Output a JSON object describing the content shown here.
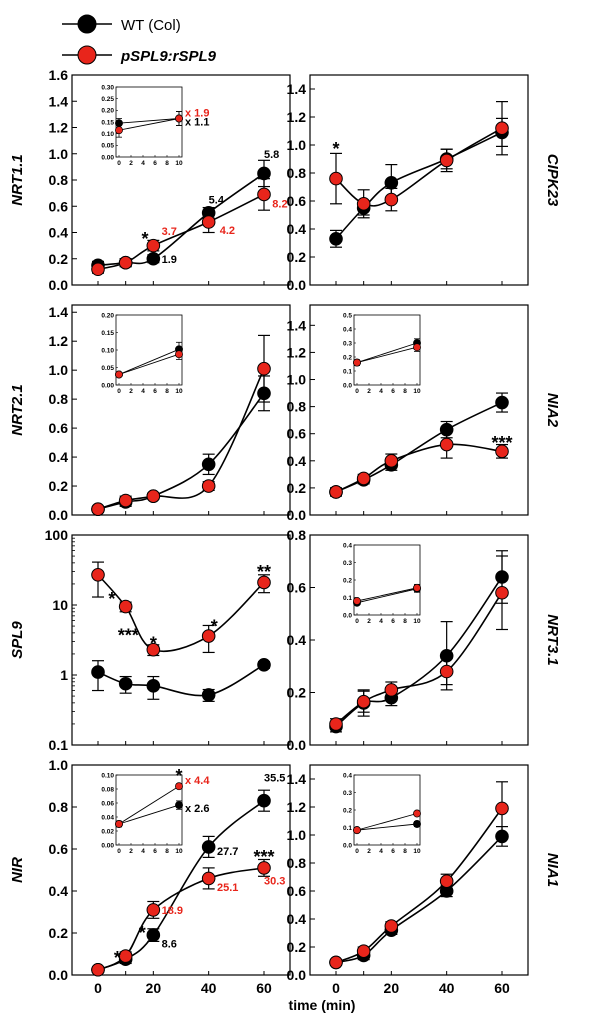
{
  "legend": [
    {
      "label": "WT (Col)",
      "color": "#000000",
      "italic": false
    },
    {
      "label": "pSPL9:rSPL9",
      "color": "#e8251b",
      "italic": true
    }
  ],
  "xlabel": "time (min)",
  "xticks": [
    "0",
    "20",
    "40",
    "60"
  ],
  "colors": {
    "wt": "#000000",
    "mut": "#e8251b"
  },
  "chart_data": [
    {
      "id": "nrt11",
      "type": "line",
      "ylabel": "NRT1.1",
      "ylabel_side": "left",
      "x": [
        0,
        10,
        20,
        40,
        60
      ],
      "ylim": [
        0,
        1.6
      ],
      "yticks": [
        "0.0",
        "0.2",
        "0.4",
        "0.6",
        "0.8",
        "1.0",
        "1.2",
        "1.4",
        "1.6"
      ],
      "series": [
        {
          "name": "WT (Col)",
          "values": [
            0.15,
            0.17,
            0.2,
            0.55,
            0.85
          ],
          "err": [
            0.03,
            0.03,
            0.03,
            0.04,
            0.1
          ]
        },
        {
          "name": "pSPL9:rSPL9",
          "values": [
            0.12,
            0.17,
            0.3,
            0.48,
            0.69
          ],
          "err": [
            0.03,
            0.03,
            0.04,
            0.08,
            0.12
          ]
        }
      ],
      "annotations": [
        {
          "text": "*",
          "x": 17,
          "y": 0.38,
          "kind": "sig"
        },
        {
          "text": "1.9",
          "x": 23,
          "y": 0.2,
          "color": "#000000"
        },
        {
          "text": "3.7",
          "x": 23,
          "y": 0.41,
          "color": "#e8251b"
        },
        {
          "text": "5.4",
          "x": 40,
          "y": 0.65,
          "color": "#000000"
        },
        {
          "text": "4.2",
          "x": 44,
          "y": 0.42,
          "color": "#e8251b"
        },
        {
          "text": "5.8",
          "x": 60,
          "y": 1.0,
          "color": "#000000"
        },
        {
          "text": "8.2",
          "x": 63,
          "y": 0.62,
          "color": "#e8251b"
        }
      ],
      "inset": {
        "ylim": [
          0,
          0.3
        ],
        "yticks": [
          "0.00",
          "0.05",
          "0.10",
          "0.15",
          "0.20",
          "0.25",
          "0.30"
        ],
        "xticks": [
          "0",
          "2",
          "4",
          "6",
          "8",
          "10"
        ],
        "series": [
          {
            "name": "WT (Col)",
            "values": [
              0.145,
              0.165
            ],
            "err": [
              0.02,
              0.03
            ]
          },
          {
            "name": "pSPL9:rSPL9",
            "values": [
              0.115,
              0.165
            ],
            "err": [
              0.03,
              0.03
            ]
          }
        ],
        "annotations": [
          {
            "text": "x 1.9",
            "color": "#e8251b",
            "pos": "upper"
          },
          {
            "text": "x 1.1",
            "color": "#000000",
            "pos": "lower"
          }
        ]
      }
    },
    {
      "id": "cipk23",
      "type": "line",
      "ylabel": "CIPK23",
      "ylabel_side": "right",
      "x": [
        0,
        10,
        20,
        40,
        60
      ],
      "ylim": [
        0,
        1.5
      ],
      "yticks": [
        "0.0",
        "0.2",
        "0.4",
        "0.6",
        "0.8",
        "1.0",
        "1.2",
        "1.4"
      ],
      "series": [
        {
          "name": "WT (Col)",
          "values": [
            0.33,
            0.55,
            0.73,
            0.9,
            1.09
          ],
          "err": [
            0.06,
            0.05,
            0.13,
            0.07,
            0.1
          ]
        },
        {
          "name": "pSPL9:rSPL9",
          "values": [
            0.76,
            0.58,
            0.61,
            0.89,
            1.12
          ],
          "err": [
            0.18,
            0.1,
            0.08,
            0.08,
            0.19
          ]
        }
      ],
      "annotations": [
        {
          "text": "*",
          "x": 0,
          "y": 1.0,
          "kind": "sig"
        }
      ]
    },
    {
      "id": "nrt21",
      "type": "line",
      "ylabel": "NRT2.1",
      "ylabel_side": "left",
      "x": [
        0,
        10,
        20,
        40,
        60
      ],
      "ylim": [
        0,
        1.45
      ],
      "yticks": [
        "0.0",
        "0.2",
        "0.4",
        "0.6",
        "0.8",
        "1.0",
        "1.2",
        "1.4"
      ],
      "series": [
        {
          "name": "WT (Col)",
          "values": [
            0.04,
            0.09,
            0.13,
            0.35,
            0.84
          ],
          "err": [
            0.02,
            0.03,
            0.02,
            0.07,
            0.12
          ]
        },
        {
          "name": "pSPL9:rSPL9",
          "values": [
            0.04,
            0.1,
            0.13,
            0.2,
            1.01
          ],
          "err": [
            0.02,
            0.03,
            0.02,
            0.03,
            0.23
          ]
        }
      ],
      "annotations": [],
      "inset": {
        "ylim": [
          0,
          0.2
        ],
        "yticks": [
          "0.00",
          "0.05",
          "0.10",
          "0.15",
          "0.20"
        ],
        "xticks": [
          "0",
          "2",
          "4",
          "6",
          "8",
          "10"
        ],
        "series": [
          {
            "name": "WT (Col)",
            "values": [
              0.03,
              0.102
            ],
            "err": [
              0.005,
              0.02
            ]
          },
          {
            "name": "pSPL9:rSPL9",
            "values": [
              0.03,
              0.088
            ],
            "err": [
              0.005,
              0.015
            ]
          }
        ],
        "annotations": []
      }
    },
    {
      "id": "nia2",
      "type": "line",
      "ylabel": "NIA2",
      "ylabel_side": "right",
      "x": [
        0,
        10,
        20,
        40,
        60
      ],
      "ylim": [
        0,
        1.55
      ],
      "yticks": [
        "0.0",
        "0.2",
        "0.4",
        "0.6",
        "0.8",
        "1.0",
        "1.2",
        "1.4"
      ],
      "series": [
        {
          "name": "WT (Col)",
          "values": [
            0.17,
            0.26,
            0.37,
            0.63,
            0.83
          ],
          "err": [
            0.03,
            0.03,
            0.04,
            0.06,
            0.07
          ]
        },
        {
          "name": "pSPL9:rSPL9",
          "values": [
            0.17,
            0.27,
            0.4,
            0.52,
            0.47
          ],
          "err": [
            0.03,
            0.03,
            0.05,
            0.1,
            0.05
          ]
        }
      ],
      "annotations": [
        {
          "text": "***",
          "x": 60,
          "y": 0.56,
          "kind": "sig"
        }
      ],
      "inset": {
        "ylim": [
          0,
          0.5
        ],
        "yticks": [
          "0.0",
          "0.1",
          "0.2",
          "0.3",
          "0.4",
          "0.5"
        ],
        "xticks": [
          "0",
          "2",
          "4",
          "6",
          "8",
          "10"
        ],
        "series": [
          {
            "name": "WT (Col)",
            "values": [
              0.16,
              0.3
            ],
            "err": [
              0.02,
              0.03
            ]
          },
          {
            "name": "pSPL9:rSPL9",
            "values": [
              0.16,
              0.27
            ],
            "err": [
              0.02,
              0.03
            ]
          }
        ],
        "annotations": []
      }
    },
    {
      "id": "spl9",
      "type": "line",
      "ylabel": "SPL9",
      "ylabel_side": "left",
      "log": true,
      "x": [
        0,
        10,
        20,
        40,
        60
      ],
      "ylim": [
        0.1,
        100
      ],
      "yticks": [
        "0.1",
        "1",
        "10",
        "100"
      ],
      "series": [
        {
          "name": "WT (Col)",
          "values": [
            1.1,
            0.75,
            0.7,
            0.52,
            1.4
          ],
          "err": [
            0.5,
            0.2,
            0.25,
            0.1,
            0.15
          ]
        },
        {
          "name": "pSPL9:rSPL9",
          "values": [
            27,
            9.5,
            2.3,
            3.6,
            21
          ],
          "err": [
            14,
            1.5,
            0.4,
            1.5,
            6
          ]
        }
      ],
      "annotations": [
        {
          "text": "*",
          "x": 5,
          "y": 14,
          "kind": "sig"
        },
        {
          "text": "***",
          "x": 11,
          "y": 4.2,
          "kind": "sig"
        },
        {
          "text": "*",
          "x": 20,
          "y": 3.2,
          "kind": "sig"
        },
        {
          "text": "*",
          "x": 42,
          "y": 5.6,
          "kind": "sig"
        },
        {
          "text": "**",
          "x": 60,
          "y": 34,
          "kind": "sig"
        }
      ]
    },
    {
      "id": "nrt31",
      "type": "line",
      "ylabel": "NRT3.1",
      "ylabel_side": "right",
      "x": [
        0,
        10,
        20,
        40,
        60
      ],
      "ylim": [
        0,
        0.8
      ],
      "yticks": [
        "0.0",
        "0.2",
        "0.4",
        "0.6",
        "0.8"
      ],
      "series": [
        {
          "name": "WT (Col)",
          "values": [
            0.07,
            0.16,
            0.18,
            0.34,
            0.64
          ],
          "err": [
            0.02,
            0.05,
            0.03,
            0.13,
            0.1
          ]
        },
        {
          "name": "pSPL9:rSPL9",
          "values": [
            0.08,
            0.165,
            0.21,
            0.28,
            0.58
          ],
          "err": [
            0.02,
            0.04,
            0.03,
            0.05,
            0.14
          ]
        }
      ],
      "annotations": [],
      "inset": {
        "ylim": [
          0,
          0.4
        ],
        "yticks": [
          "0.0",
          "0.1",
          "0.2",
          "0.3",
          "0.4"
        ],
        "xticks": [
          "0",
          "2",
          "4",
          "6",
          "8",
          "10"
        ],
        "series": [
          {
            "name": "WT (Col)",
            "values": [
              0.07,
              0.15
            ],
            "err": [
              0.01,
              0.02
            ]
          },
          {
            "name": "pSPL9:rSPL9",
            "values": [
              0.08,
              0.155
            ],
            "err": [
              0.01,
              0.02
            ]
          }
        ],
        "annotations": []
      }
    },
    {
      "id": "nir",
      "type": "line",
      "ylabel": "NIR",
      "ylabel_side": "left",
      "x": [
        0,
        10,
        20,
        40,
        60
      ],
      "ylim": [
        0,
        1.0
      ],
      "yticks": [
        "0.0",
        "0.2",
        "0.4",
        "0.6",
        "0.8",
        "1.0"
      ],
      "series": [
        {
          "name": "WT (Col)",
          "values": [
            0.025,
            0.075,
            0.19,
            0.61,
            0.83
          ],
          "err": [
            0.01,
            0.02,
            0.03,
            0.05,
            0.05
          ]
        },
        {
          "name": "pSPL9:rSPL9",
          "values": [
            0.025,
            0.09,
            0.31,
            0.46,
            0.51
          ],
          "err": [
            0.01,
            0.02,
            0.04,
            0.05,
            0.04
          ]
        }
      ],
      "annotations": [
        {
          "text": "*",
          "x": 7,
          "y": 0.1,
          "kind": "sig"
        },
        {
          "text": "*",
          "x": 16,
          "y": 0.22,
          "kind": "sig"
        },
        {
          "text": "8.6",
          "x": 23,
          "y": 0.15,
          "color": "#000000"
        },
        {
          "text": "18.9",
          "x": 23,
          "y": 0.31,
          "color": "#e8251b"
        },
        {
          "text": "27.7",
          "x": 43,
          "y": 0.59,
          "color": "#000000"
        },
        {
          "text": "25.1",
          "x": 43,
          "y": 0.42,
          "color": "#e8251b"
        },
        {
          "text": "35.5",
          "x": 60,
          "y": 0.94,
          "color": "#000000"
        },
        {
          "text": "***",
          "x": 60,
          "y": 0.58,
          "kind": "sig"
        },
        {
          "text": "30.3",
          "x": 60,
          "y": 0.45,
          "color": "#e8251b"
        }
      ],
      "inset": {
        "ylim": [
          0,
          0.1
        ],
        "yticks": [
          "0.00",
          "0.02",
          "0.04",
          "0.06",
          "0.08",
          "0.10"
        ],
        "xticks": [
          "0",
          "2",
          "4",
          "6",
          "8",
          "10"
        ],
        "series": [
          {
            "name": "WT (Col)",
            "values": [
              0.03,
              0.057
            ],
            "err": [
              0.004,
              0.006
            ]
          },
          {
            "name": "pSPL9:rSPL9",
            "values": [
              0.03,
              0.084
            ],
            "err": [
              0.004,
              0.003
            ]
          }
        ],
        "annotations": [
          {
            "text": "*",
            "color": "#000000",
            "pos": "sig"
          },
          {
            "text": "x 4.4",
            "color": "#e8251b",
            "pos": "upper"
          },
          {
            "text": "x 2.6",
            "color": "#000000",
            "pos": "lower"
          }
        ]
      }
    },
    {
      "id": "nia1",
      "type": "line",
      "ylabel": "NIA1",
      "ylabel_side": "right",
      "x": [
        0,
        10,
        20,
        40,
        60
      ],
      "ylim": [
        0,
        1.5
      ],
      "yticks": [
        "0.0",
        "0.2",
        "0.4",
        "0.6",
        "0.8",
        "1.0",
        "1.2",
        "1.4"
      ],
      "series": [
        {
          "name": "WT (Col)",
          "values": [
            0.09,
            0.14,
            0.32,
            0.6,
            0.99
          ],
          "err": [
            0.02,
            0.03,
            0.03,
            0.04,
            0.07
          ]
        },
        {
          "name": "pSPL9:rSPL9",
          "values": [
            0.09,
            0.17,
            0.35,
            0.67,
            1.19
          ],
          "err": [
            0.02,
            0.03,
            0.03,
            0.05,
            0.19
          ]
        }
      ],
      "annotations": [],
      "inset": {
        "ylim": [
          0,
          0.4
        ],
        "yticks": [
          "0.0",
          "0.1",
          "0.2",
          "0.3",
          "0.4"
        ],
        "xticks": [
          "0",
          "2",
          "4",
          "6",
          "8",
          "10"
        ],
        "series": [
          {
            "name": "WT (Col)",
            "values": [
              0.085,
              0.12
            ],
            "err": [
              0.008,
              0.015
            ]
          },
          {
            "name": "pSPL9:rSPL9",
            "values": [
              0.085,
              0.18
            ],
            "err": [
              0.008,
              0.01
            ]
          }
        ],
        "annotations": []
      }
    }
  ]
}
